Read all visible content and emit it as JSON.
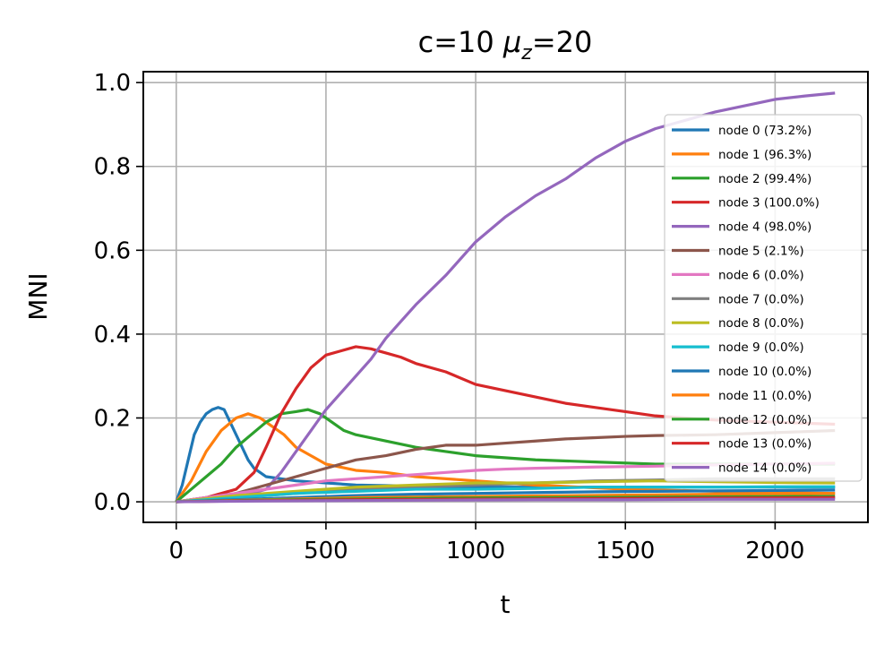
{
  "chart_data": {
    "type": "line",
    "title": "c=10 μz=20",
    "title_parts": {
      "prefix": "c=10 ",
      "mu": "μ",
      "sub": "z",
      "suffix": "=20"
    },
    "xlabel": "t",
    "ylabel": "MNI",
    "xlim": [
      -110,
      2310
    ],
    "ylim": [
      -0.049,
      1.026
    ],
    "xticks": [
      0,
      500,
      1000,
      1500,
      2000
    ],
    "xtick_labels": [
      "0",
      "500",
      "1000",
      "1500",
      "2000"
    ],
    "yticks": [
      0.0,
      0.2,
      0.4,
      0.6,
      0.8,
      1.0
    ],
    "ytick_labels": [
      "0.0",
      "0.2",
      "0.4",
      "0.6",
      "0.8",
      "1.0"
    ],
    "grid": true,
    "legend_position": "right",
    "series": [
      {
        "name": "node 0 (73.2%)",
        "color": "#1f77b4",
        "points": [
          [
            0,
            0
          ],
          [
            20,
            0.04
          ],
          [
            40,
            0.1
          ],
          [
            60,
            0.16
          ],
          [
            80,
            0.19
          ],
          [
            100,
            0.21
          ],
          [
            120,
            0.22
          ],
          [
            140,
            0.225
          ],
          [
            160,
            0.22
          ],
          [
            180,
            0.19
          ],
          [
            200,
            0.16
          ],
          [
            220,
            0.13
          ],
          [
            240,
            0.1
          ],
          [
            260,
            0.08
          ],
          [
            280,
            0.07
          ],
          [
            300,
            0.06
          ],
          [
            400,
            0.05
          ],
          [
            600,
            0.04
          ],
          [
            1000,
            0.035
          ],
          [
            1500,
            0.035
          ],
          [
            2200,
            0.035
          ]
        ]
      },
      {
        "name": "node 1 (96.3%)",
        "color": "#ff7f0e",
        "points": [
          [
            0,
            0
          ],
          [
            50,
            0.05
          ],
          [
            100,
            0.12
          ],
          [
            150,
            0.17
          ],
          [
            200,
            0.2
          ],
          [
            240,
            0.21
          ],
          [
            280,
            0.2
          ],
          [
            320,
            0.18
          ],
          [
            360,
            0.16
          ],
          [
            400,
            0.13
          ],
          [
            450,
            0.11
          ],
          [
            500,
            0.09
          ],
          [
            600,
            0.075
          ],
          [
            700,
            0.07
          ],
          [
            800,
            0.06
          ],
          [
            1000,
            0.05
          ],
          [
            1200,
            0.04
          ],
          [
            1500,
            0.03
          ],
          [
            1800,
            0.025
          ],
          [
            2200,
            0.02
          ]
        ]
      },
      {
        "name": "node 2 (99.4%)",
        "color": "#2ca02c",
        "points": [
          [
            0,
            0
          ],
          [
            50,
            0.03
          ],
          [
            100,
            0.06
          ],
          [
            150,
            0.09
          ],
          [
            200,
            0.13
          ],
          [
            250,
            0.16
          ],
          [
            300,
            0.19
          ],
          [
            350,
            0.21
          ],
          [
            400,
            0.215
          ],
          [
            440,
            0.22
          ],
          [
            480,
            0.21
          ],
          [
            520,
            0.19
          ],
          [
            560,
            0.17
          ],
          [
            600,
            0.16
          ],
          [
            700,
            0.145
          ],
          [
            800,
            0.13
          ],
          [
            900,
            0.12
          ],
          [
            1000,
            0.11
          ],
          [
            1200,
            0.1
          ],
          [
            1400,
            0.095
          ],
          [
            1600,
            0.09
          ],
          [
            1800,
            0.09
          ],
          [
            2200,
            0.09
          ]
        ]
      },
      {
        "name": "node 3 (100.0%)",
        "color": "#d62728",
        "points": [
          [
            0,
            0
          ],
          [
            100,
            0.01
          ],
          [
            200,
            0.03
          ],
          [
            260,
            0.07
          ],
          [
            300,
            0.13
          ],
          [
            350,
            0.21
          ],
          [
            400,
            0.27
          ],
          [
            450,
            0.32
          ],
          [
            500,
            0.35
          ],
          [
            550,
            0.36
          ],
          [
            600,
            0.37
          ],
          [
            650,
            0.365
          ],
          [
            700,
            0.355
          ],
          [
            750,
            0.345
          ],
          [
            800,
            0.33
          ],
          [
            900,
            0.31
          ],
          [
            1000,
            0.28
          ],
          [
            1100,
            0.265
          ],
          [
            1200,
            0.25
          ],
          [
            1300,
            0.235
          ],
          [
            1400,
            0.225
          ],
          [
            1500,
            0.215
          ],
          [
            1600,
            0.205
          ],
          [
            1700,
            0.2
          ],
          [
            1800,
            0.195
          ],
          [
            2000,
            0.19
          ],
          [
            2200,
            0.185
          ]
        ]
      },
      {
        "name": "node 4 (98.0%)",
        "color": "#9467bd",
        "points": [
          [
            0,
            0
          ],
          [
            200,
            0.01
          ],
          [
            300,
            0.03
          ],
          [
            350,
            0.07
          ],
          [
            400,
            0.12
          ],
          [
            450,
            0.17
          ],
          [
            500,
            0.22
          ],
          [
            550,
            0.26
          ],
          [
            600,
            0.3
          ],
          [
            650,
            0.34
          ],
          [
            700,
            0.39
          ],
          [
            750,
            0.43
          ],
          [
            800,
            0.47
          ],
          [
            900,
            0.54
          ],
          [
            1000,
            0.62
          ],
          [
            1100,
            0.68
          ],
          [
            1200,
            0.73
          ],
          [
            1300,
            0.77
          ],
          [
            1400,
            0.82
          ],
          [
            1500,
            0.86
          ],
          [
            1600,
            0.89
          ],
          [
            1700,
            0.91
          ],
          [
            1800,
            0.93
          ],
          [
            1900,
            0.945
          ],
          [
            2000,
            0.96
          ],
          [
            2100,
            0.968
          ],
          [
            2200,
            0.975
          ]
        ]
      },
      {
        "name": "node 5 (2.1%)",
        "color": "#8c564b",
        "points": [
          [
            0,
            0
          ],
          [
            200,
            0.02
          ],
          [
            300,
            0.04
          ],
          [
            400,
            0.06
          ],
          [
            500,
            0.08
          ],
          [
            600,
            0.1
          ],
          [
            700,
            0.11
          ],
          [
            800,
            0.125
          ],
          [
            900,
            0.135
          ],
          [
            1000,
            0.135
          ],
          [
            1100,
            0.14
          ],
          [
            1200,
            0.145
          ],
          [
            1300,
            0.15
          ],
          [
            1400,
            0.153
          ],
          [
            1500,
            0.156
          ],
          [
            1600,
            0.158
          ],
          [
            1800,
            0.16
          ],
          [
            2000,
            0.165
          ],
          [
            2200,
            0.17
          ]
        ]
      },
      {
        "name": "node 6 (0.0%)",
        "color": "#e377c2",
        "points": [
          [
            0,
            0
          ],
          [
            200,
            0.02
          ],
          [
            400,
            0.04
          ],
          [
            500,
            0.05
          ],
          [
            600,
            0.055
          ],
          [
            700,
            0.06
          ],
          [
            800,
            0.065
          ],
          [
            900,
            0.07
          ],
          [
            1000,
            0.075
          ],
          [
            1100,
            0.078
          ],
          [
            1200,
            0.08
          ],
          [
            1400,
            0.083
          ],
          [
            1600,
            0.085
          ],
          [
            1800,
            0.088
          ],
          [
            2000,
            0.09
          ],
          [
            2200,
            0.092
          ]
        ]
      },
      {
        "name": "node 7 (0.0%)",
        "color": "#7f7f7f",
        "points": [
          [
            0,
            0
          ],
          [
            200,
            0.01
          ],
          [
            400,
            0.02
          ],
          [
            600,
            0.03
          ],
          [
            800,
            0.035
          ],
          [
            1000,
            0.04
          ],
          [
            1200,
            0.045
          ],
          [
            1400,
            0.05
          ],
          [
            1600,
            0.052
          ],
          [
            1800,
            0.055
          ],
          [
            2000,
            0.055
          ],
          [
            2200,
            0.055
          ]
        ]
      },
      {
        "name": "node 8 (0.0%)",
        "color": "#bcbd22",
        "points": [
          [
            0,
            0
          ],
          [
            200,
            0.015
          ],
          [
            400,
            0.025
          ],
          [
            600,
            0.035
          ],
          [
            800,
            0.04
          ],
          [
            1000,
            0.045
          ],
          [
            1200,
            0.045
          ],
          [
            1400,
            0.048
          ],
          [
            1600,
            0.05
          ],
          [
            1800,
            0.048
          ],
          [
            2000,
            0.046
          ],
          [
            2200,
            0.045
          ]
        ]
      },
      {
        "name": "node 9 (0.0%)",
        "color": "#17becf",
        "points": [
          [
            0,
            0
          ],
          [
            200,
            0.01
          ],
          [
            400,
            0.02
          ],
          [
            600,
            0.025
          ],
          [
            800,
            0.03
          ],
          [
            1000,
            0.03
          ],
          [
            1200,
            0.032
          ],
          [
            1400,
            0.035
          ],
          [
            1600,
            0.035
          ],
          [
            1800,
            0.035
          ],
          [
            2000,
            0.036
          ],
          [
            2200,
            0.036
          ]
        ]
      },
      {
        "name": "node 10 (0.0%)",
        "color": "#1f77b4",
        "points": [
          [
            0,
            0
          ],
          [
            200,
            0.005
          ],
          [
            400,
            0.01
          ],
          [
            600,
            0.015
          ],
          [
            800,
            0.018
          ],
          [
            1000,
            0.02
          ],
          [
            1200,
            0.022
          ],
          [
            1400,
            0.024
          ],
          [
            1600,
            0.025
          ],
          [
            1800,
            0.026
          ],
          [
            2000,
            0.027
          ],
          [
            2200,
            0.028
          ]
        ]
      },
      {
        "name": "node 11 (0.0%)",
        "color": "#ff7f0e",
        "points": [
          [
            0,
            0
          ],
          [
            300,
            0.005
          ],
          [
            600,
            0.01
          ],
          [
            900,
            0.012
          ],
          [
            1200,
            0.014
          ],
          [
            1500,
            0.016
          ],
          [
            1800,
            0.018
          ],
          [
            2200,
            0.02
          ]
        ]
      },
      {
        "name": "node 12 (0.0%)",
        "color": "#2ca02c",
        "points": [
          [
            0,
            0
          ],
          [
            300,
            0.004
          ],
          [
            600,
            0.007
          ],
          [
            900,
            0.009
          ],
          [
            1200,
            0.01
          ],
          [
            1500,
            0.011
          ],
          [
            1800,
            0.012
          ],
          [
            2200,
            0.013
          ]
        ]
      },
      {
        "name": "node 13 (0.0%)",
        "color": "#d62728",
        "points": [
          [
            0,
            0
          ],
          [
            300,
            0.003
          ],
          [
            600,
            0.005
          ],
          [
            900,
            0.006
          ],
          [
            1200,
            0.007
          ],
          [
            1500,
            0.008
          ],
          [
            1800,
            0.009
          ],
          [
            2200,
            0.01
          ]
        ]
      },
      {
        "name": "node 14 (0.0%)",
        "color": "#9467bd",
        "points": [
          [
            0,
            0
          ],
          [
            300,
            0.002
          ],
          [
            600,
            0.003
          ],
          [
            900,
            0.004
          ],
          [
            1200,
            0.005
          ],
          [
            1500,
            0.005
          ],
          [
            1800,
            0.006
          ],
          [
            2200,
            0.006
          ]
        ]
      }
    ]
  }
}
